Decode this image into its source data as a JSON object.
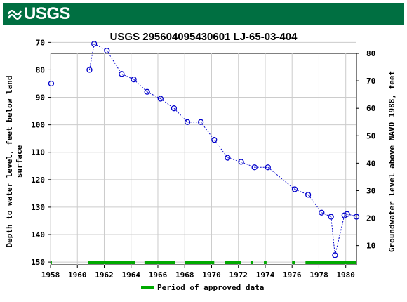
{
  "header": {
    "logo_text": "USGS",
    "logo_color": "#006f41"
  },
  "chart_data": {
    "type": "scatter",
    "title": "USGS 295604095430601 LJ-65-03-404",
    "ylabel_left": "Depth to water level, feet below land surface",
    "ylabel_left_lines": [
      "Depth to water level, feet below land",
      "surface"
    ],
    "ylabel_right": "Groundwater level above NAVD 1988, feet",
    "xlim": [
      1958,
      1980.8
    ],
    "ylim_left": [
      151,
      74
    ],
    "ylim_right": [
      3,
      80
    ],
    "x_ticks": [
      "1958",
      "1960",
      "1962",
      "1964",
      "1966",
      "1968",
      "1970",
      "1972",
      "1974",
      "1976",
      "1978",
      "1980"
    ],
    "y_ticks_left": [
      "70",
      "80",
      "90",
      "100",
      "110",
      "120",
      "130",
      "140",
      "150"
    ],
    "y_ticks_right": [
      "80",
      "70",
      "60",
      "50",
      "40",
      "30",
      "20",
      "10"
    ],
    "series": [
      {
        "color": "#0000cc",
        "points": [
          {
            "x": 1958.05,
            "y": 85.0
          },
          {
            "x": 1960.9,
            "y": 80.0
          },
          {
            "x": 1961.25,
            "y": 70.5
          },
          {
            "x": 1962.2,
            "y": 73.0
          },
          {
            "x": 1963.3,
            "y": 81.5
          },
          {
            "x": 1964.2,
            "y": 83.5
          },
          {
            "x": 1965.2,
            "y": 88.0
          },
          {
            "x": 1966.2,
            "y": 90.5
          },
          {
            "x": 1967.2,
            "y": 94.0
          },
          {
            "x": 1968.2,
            "y": 99.0
          },
          {
            "x": 1969.2,
            "y": 99.0
          },
          {
            "x": 1970.2,
            "y": 105.5
          },
          {
            "x": 1971.2,
            "y": 112.0
          },
          {
            "x": 1972.2,
            "y": 113.5
          },
          {
            "x": 1973.2,
            "y": 115.5
          },
          {
            "x": 1974.2,
            "y": 115.5
          },
          {
            "x": 1976.2,
            "y": 123.5
          },
          {
            "x": 1977.2,
            "y": 125.5
          },
          {
            "x": 1978.2,
            "y": 132.0
          },
          {
            "x": 1978.9,
            "y": 133.5
          },
          {
            "x": 1979.2,
            "y": 147.5
          },
          {
            "x": 1979.9,
            "y": 133.0
          },
          {
            "x": 1980.1,
            "y": 132.5
          },
          {
            "x": 1980.9,
            "y": 133.5
          }
        ],
        "connected_segments": [
          [
            1,
            23
          ]
        ]
      }
    ],
    "approved_periods": [
      [
        1958.0,
        1958.1
      ],
      [
        1960.8,
        1964.3
      ],
      [
        1965.0,
        1967.3
      ],
      [
        1968.0,
        1970.2
      ],
      [
        1971.0,
        1972.2
      ],
      [
        1972.9,
        1973.1
      ],
      [
        1973.9,
        1974.1
      ],
      [
        1976.0,
        1976.2
      ],
      [
        1977.0,
        1980.8
      ]
    ],
    "approved_color": "#00aa00",
    "legend": {
      "label": "Period of approved data",
      "position": "bottom-center"
    },
    "grid": true
  }
}
